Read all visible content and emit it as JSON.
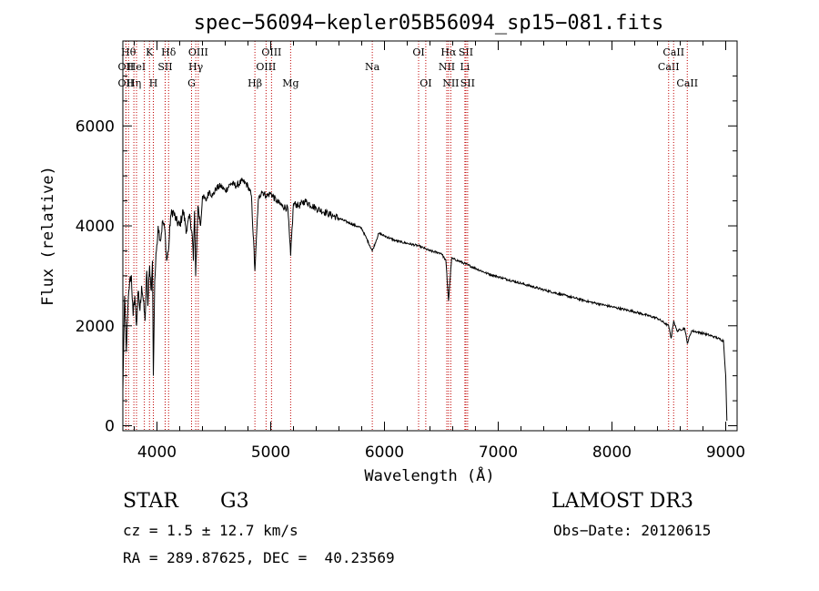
{
  "chart_data": {
    "type": "line",
    "title": "spec−56094−kepler05B56094_sp15−081.fits",
    "xlabel": "Wavelength (Å)",
    "ylabel": "Flux (relative)",
    "xlim": [
      3700,
      9100
    ],
    "ylim": [
      -100,
      7700
    ],
    "xticks": [
      4000,
      5000,
      6000,
      7000,
      8000,
      9000
    ],
    "yticks": [
      0,
      2000,
      4000,
      6000
    ],
    "grid": false,
    "series": [
      {
        "name": "flux",
        "x": [
          3700,
          3715,
          3730,
          3745,
          3760,
          3775,
          3790,
          3805,
          3820,
          3835,
          3850,
          3865,
          3880,
          3895,
          3910,
          3920,
          3935,
          3950,
          3960,
          3968,
          3980,
          3995,
          4010,
          4030,
          4050,
          4070,
          4085,
          4101,
          4120,
          4140,
          4170,
          4200,
          4230,
          4260,
          4290,
          4310,
          4320,
          4330,
          4340,
          4360,
          4383,
          4400,
          4430,
          4460,
          4490,
          4520,
          4560,
          4600,
          4650,
          4700,
          4750,
          4800,
          4830,
          4861,
          4890,
          4920,
          4960,
          5000,
          5050,
          5100,
          5150,
          5175,
          5200,
          5250,
          5300,
          5400,
          5500,
          5600,
          5700,
          5800,
          5893,
          5950,
          6000,
          6100,
          6200,
          6300,
          6400,
          6500,
          6540,
          6563,
          6590,
          6650,
          6700,
          6800,
          6900,
          7000,
          7200,
          7400,
          7600,
          7800,
          8000,
          8200,
          8400,
          8498,
          8520,
          8542,
          8570,
          8640,
          8662,
          8700,
          8800,
          8900,
          8980,
          9000,
          9010
        ],
        "values": [
          700,
          2600,
          1500,
          2400,
          2900,
          3000,
          2200,
          2600,
          2000,
          2700,
          2300,
          2800,
          2500,
          2100,
          3100,
          2400,
          3200,
          2700,
          3300,
          1000,
          2900,
          3500,
          4000,
          3700,
          4100,
          3900,
          3300,
          3500,
          4200,
          4300,
          4100,
          4000,
          4300,
          3900,
          4200,
          3800,
          3300,
          4300,
          3000,
          4400,
          4000,
          4600,
          4500,
          4700,
          4600,
          4750,
          4800,
          4700,
          4850,
          4800,
          4900,
          4800,
          4600,
          3100,
          4500,
          4700,
          4600,
          4650,
          4500,
          4400,
          4350,
          3400,
          4450,
          4400,
          4500,
          4350,
          4250,
          4150,
          4050,
          3950,
          3500,
          3850,
          3800,
          3700,
          3650,
          3600,
          3500,
          3450,
          3300,
          2500,
          3350,
          3300,
          3250,
          3150,
          3050,
          2980,
          2850,
          2720,
          2600,
          2480,
          2380,
          2280,
          2150,
          2000,
          1750,
          2100,
          1900,
          1950,
          1650,
          1900,
          1850,
          1780,
          1700,
          1000,
          100
        ]
      }
    ],
    "lines": [
      {
        "x": 3727,
        "label": "OII",
        "row": 2
      },
      {
        "x": 3727,
        "label": "OII",
        "row": 3
      },
      {
        "x": 3750,
        "label": "Hθ",
        "row": 1
      },
      {
        "x": 3797,
        "label": "Hη",
        "row": 3
      },
      {
        "x": 3820,
        "label": "HeI",
        "row": 2
      },
      {
        "x": 3889,
        "label": "",
        "row": 0
      },
      {
        "x": 3934,
        "label": "K",
        "row": 1
      },
      {
        "x": 3968,
        "label": "H",
        "row": 3
      },
      {
        "x": 4072,
        "label": "SII",
        "row": 2
      },
      {
        "x": 4102,
        "label": "Hδ",
        "row": 1
      },
      {
        "x": 4304,
        "label": "G",
        "row": 3
      },
      {
        "x": 4341,
        "label": "Hγ",
        "row": 2
      },
      {
        "x": 4363,
        "label": "OIII",
        "row": 1
      },
      {
        "x": 4861,
        "label": "Hβ",
        "row": 3
      },
      {
        "x": 4959,
        "label": "OIII",
        "row": 2
      },
      {
        "x": 5007,
        "label": "OIII",
        "row": 1
      },
      {
        "x": 5175,
        "label": "Mg",
        "row": 3
      },
      {
        "x": 5893,
        "label": "Na",
        "row": 2
      },
      {
        "x": 6300,
        "label": "OI",
        "row": 1
      },
      {
        "x": 6363,
        "label": "OI",
        "row": 3
      },
      {
        "x": 6548,
        "label": "NII",
        "row": 2
      },
      {
        "x": 6563,
        "label": "Hα",
        "row": 1
      },
      {
        "x": 6583,
        "label": "NII",
        "row": 3
      },
      {
        "x": 6707,
        "label": "Li",
        "row": 2
      },
      {
        "x": 6716,
        "label": "SII",
        "row": 1
      },
      {
        "x": 6731,
        "label": "SII",
        "row": 3
      },
      {
        "x": 8498,
        "label": "CaII",
        "row": 2
      },
      {
        "x": 8542,
        "label": "CaII",
        "row": 1
      },
      {
        "x": 8662,
        "label": "CaII",
        "row": 3
      }
    ]
  },
  "info": {
    "object_class": "STAR",
    "subclass": "G3",
    "survey": "LAMOST DR3",
    "redshift": "cz = 1.5 ± 12.7 km/s",
    "obs_date": "Obs−Date: 20120615",
    "coordinates": "RA = 289.87625, DEC =  40.23569"
  }
}
